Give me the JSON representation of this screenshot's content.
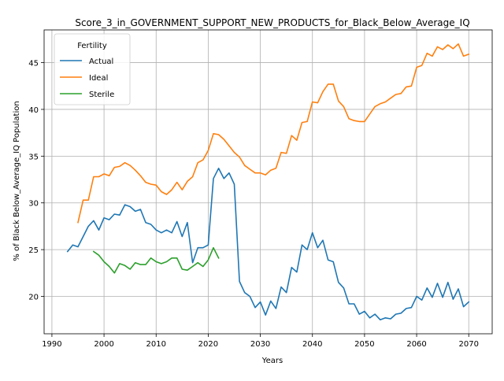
{
  "chart_data": {
    "type": "line",
    "title": "Score_3_in_GOVERNMENT_SUPPORT_NEW_PRODUCTS_for_Black_Below_Average_IQ",
    "xlabel": "Years",
    "ylabel": "% of Black Below_Average_IQ Population",
    "xlim": [
      1988.5,
      2074.5
    ],
    "ylim": [
      16.0,
      48.5
    ],
    "xticks": [
      1990,
      2000,
      2010,
      2020,
      2030,
      2040,
      2050,
      2060,
      2070
    ],
    "yticks": [
      20,
      25,
      30,
      35,
      40,
      45
    ],
    "grid": true,
    "legend": {
      "title": "Fertility",
      "position": "top-left"
    },
    "series": [
      {
        "name": "Actual",
        "color": "#1f77b4",
        "x": [
          1993,
          1994,
          1995,
          1996,
          1997,
          1998,
          1999,
          2000,
          2001,
          2002,
          2003,
          2004,
          2005,
          2006,
          2007,
          2008,
          2009,
          2010,
          2011,
          2012,
          2013,
          2014,
          2015,
          2016,
          2017,
          2018,
          2019,
          2020,
          2021,
          2022,
          2023,
          2024,
          2025,
          2026,
          2027,
          2028,
          2029,
          2030,
          2031,
          2032,
          2033,
          2034,
          2035,
          2036,
          2037,
          2038,
          2039,
          2040,
          2041,
          2042,
          2043,
          2044,
          2045,
          2046,
          2047,
          2048,
          2049,
          2050,
          2051,
          2052,
          2053,
          2054,
          2055,
          2056,
          2057,
          2058,
          2059,
          2060,
          2061,
          2062,
          2063,
          2064,
          2065,
          2066,
          2067,
          2068,
          2069,
          2070
        ],
        "y": [
          24.8,
          25.5,
          25.3,
          26.4,
          27.5,
          28.1,
          27.1,
          28.4,
          28.2,
          28.8,
          28.7,
          29.8,
          29.6,
          29.1,
          29.3,
          27.9,
          27.7,
          27.1,
          26.8,
          27.1,
          26.8,
          28.0,
          26.4,
          27.9,
          23.6,
          25.2,
          25.2,
          25.5,
          32.6,
          33.7,
          32.6,
          33.2,
          32.0,
          21.6,
          20.4,
          20.0,
          18.8,
          19.4,
          18.0,
          19.5,
          18.7,
          21.0,
          20.4,
          23.1,
          22.6,
          25.5,
          25.0,
          26.8,
          25.2,
          26.0,
          23.9,
          23.7,
          21.5,
          20.9,
          19.2,
          19.2,
          18.1,
          18.4,
          17.7,
          18.1,
          17.5,
          17.7,
          17.6,
          18.1,
          18.2,
          18.7,
          18.8,
          20.0,
          19.6,
          20.9,
          19.9,
          21.4,
          19.9,
          21.5,
          19.7,
          20.8,
          18.9,
          19.4
        ]
      },
      {
        "name": "Ideal",
        "color": "#ff7f0e",
        "x": [
          1995,
          1996,
          1997,
          1998,
          1999,
          2000,
          2001,
          2002,
          2003,
          2004,
          2005,
          2006,
          2007,
          2008,
          2009,
          2010,
          2011,
          2012,
          2013,
          2014,
          2015,
          2016,
          2017,
          2018,
          2019,
          2020,
          2021,
          2022,
          2023,
          2024,
          2025,
          2026,
          2027,
          2028,
          2029,
          2030,
          2031,
          2032,
          2033,
          2034,
          2035,
          2036,
          2037,
          2038,
          2039,
          2040,
          2041,
          2042,
          2043,
          2044,
          2045,
          2046,
          2047,
          2048,
          2049,
          2050,
          2051,
          2052,
          2053,
          2054,
          2055,
          2056,
          2057,
          2058,
          2059,
          2060,
          2061,
          2062,
          2063,
          2064,
          2065,
          2066,
          2067,
          2068,
          2069,
          2070
        ],
        "y": [
          27.9,
          30.3,
          30.3,
          32.8,
          32.8,
          33.1,
          32.9,
          33.8,
          33.9,
          34.3,
          34.0,
          33.5,
          32.9,
          32.2,
          32.0,
          31.9,
          31.2,
          30.9,
          31.4,
          32.2,
          31.4,
          32.3,
          32.8,
          34.3,
          34.6,
          35.6,
          37.4,
          37.3,
          36.8,
          36.1,
          35.4,
          34.9,
          34.0,
          33.6,
          33.2,
          33.2,
          33.0,
          33.5,
          33.7,
          35.4,
          35.3,
          37.2,
          36.7,
          38.6,
          38.7,
          40.8,
          40.7,
          41.9,
          42.7,
          42.7,
          40.9,
          40.3,
          39.0,
          38.8,
          38.7,
          38.7,
          39.5,
          40.3,
          40.6,
          40.8,
          41.2,
          41.6,
          41.7,
          42.4,
          42.5,
          44.5,
          44.7,
          46.0,
          45.7,
          46.7,
          46.4,
          46.9,
          46.5,
          47.0,
          45.7,
          45.9
        ]
      },
      {
        "name": "Sterile",
        "color": "#2ca02c",
        "x": [
          1998,
          1999,
          2000,
          2001,
          2002,
          2003,
          2004,
          2005,
          2006,
          2007,
          2008,
          2009,
          2010,
          2011,
          2012,
          2013,
          2014,
          2015,
          2016,
          2017,
          2018,
          2019,
          2020,
          2021,
          2022
        ],
        "y": [
          24.8,
          24.4,
          23.7,
          23.2,
          22.5,
          23.5,
          23.3,
          22.9,
          23.6,
          23.4,
          23.4,
          24.1,
          23.7,
          23.5,
          23.7,
          24.1,
          24.1,
          22.9,
          22.8,
          23.2,
          23.6,
          23.2,
          23.9,
          25.2,
          24.1
        ]
      }
    ]
  }
}
